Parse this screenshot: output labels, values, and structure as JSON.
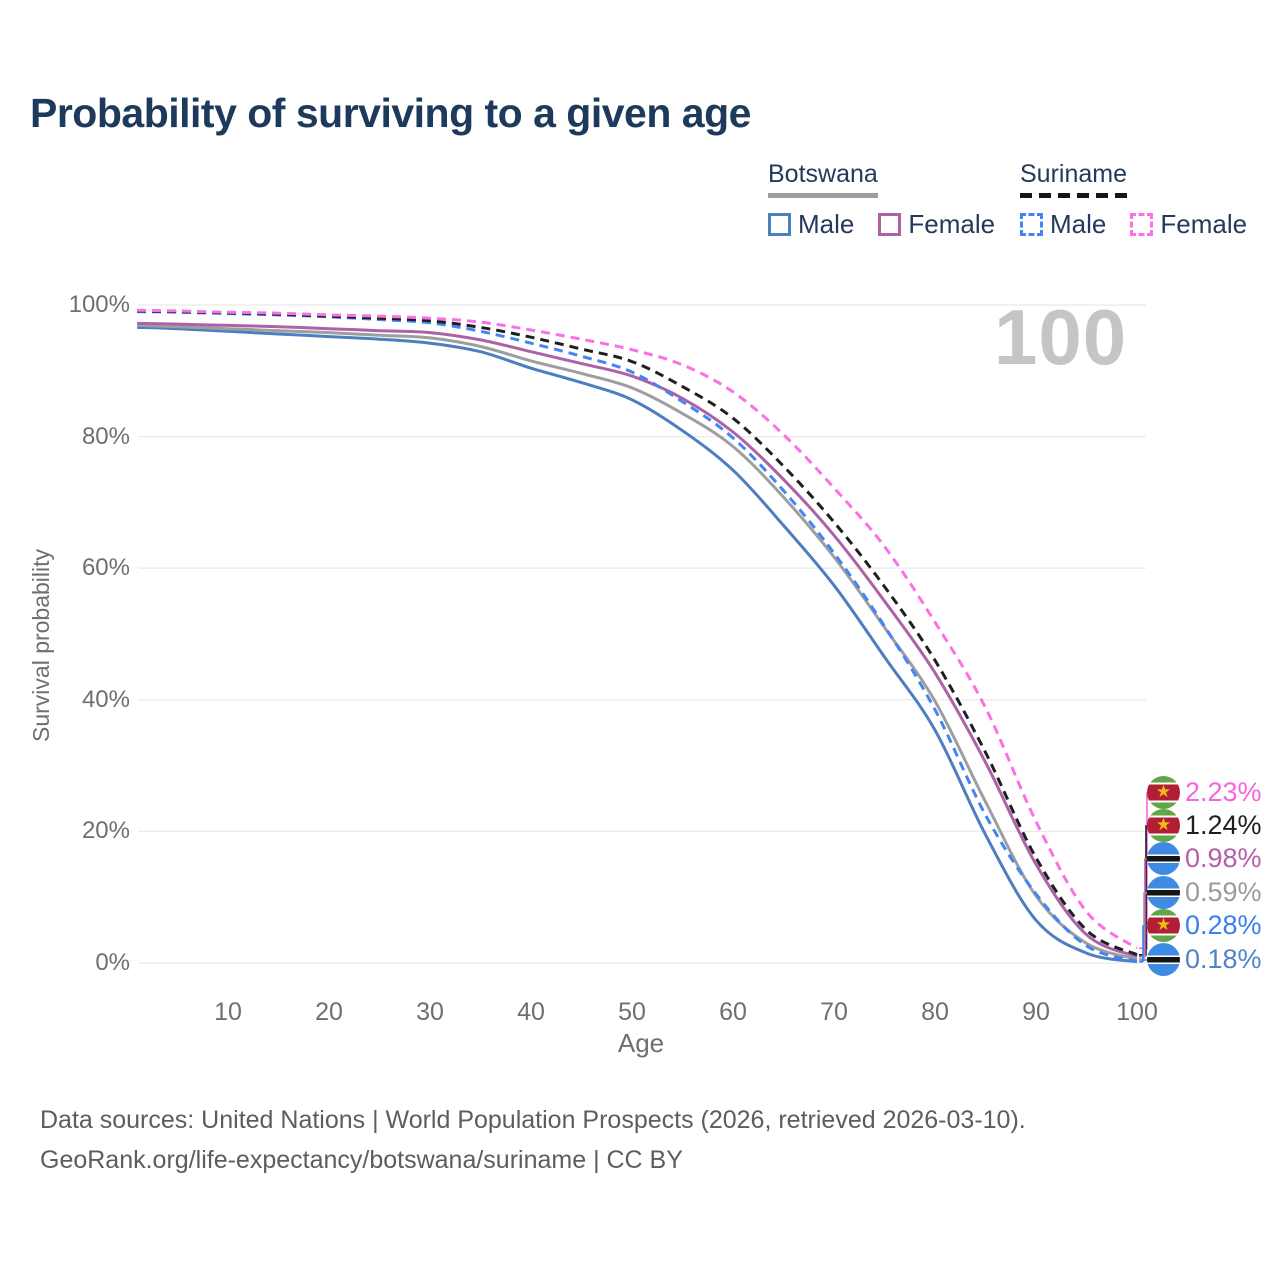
{
  "title": "Probability of surviving to a given age",
  "watermark_age": "100",
  "legend": {
    "groups": [
      {
        "name": "Botswana",
        "line_style": "solid",
        "line_color": "#9e9e9e",
        "items": [
          {
            "label": "Male",
            "color": "#4d7ec0"
          },
          {
            "label": "Female",
            "color": "#ad62a7"
          }
        ]
      },
      {
        "name": "Suriname",
        "line_style": "dashed",
        "line_color": "#161616",
        "items": [
          {
            "label": "Male",
            "color": "#4285f4"
          },
          {
            "label": "Female",
            "color": "#fb71e4"
          }
        ]
      }
    ]
  },
  "axes": {
    "y_title": "Survival probability",
    "x_title": "Age",
    "y_ticks": [
      {
        "label": "100%",
        "pct": 100
      },
      {
        "label": "80%",
        "pct": 80
      },
      {
        "label": "60%",
        "pct": 60
      },
      {
        "label": "40%",
        "pct": 40
      },
      {
        "label": "20%",
        "pct": 20
      },
      {
        "label": "0%",
        "pct": 0
      }
    ],
    "x_ticks": [
      {
        "label": "10",
        "age": 10
      },
      {
        "label": "20",
        "age": 20
      },
      {
        "label": "30",
        "age": 30
      },
      {
        "label": "40",
        "age": 40
      },
      {
        "label": "50",
        "age": 50
      },
      {
        "label": "60",
        "age": 60
      },
      {
        "label": "70",
        "age": 70
      },
      {
        "label": "80",
        "age": 80
      },
      {
        "label": "90",
        "age": 90
      },
      {
        "label": "100",
        "age": 100
      }
    ]
  },
  "chart_data": {
    "type": "line",
    "title": "Probability of surviving to a given age",
    "xlabel": "Age",
    "ylabel": "Survival probability",
    "x_range": [
      1,
      100
    ],
    "y_range_pct": [
      0,
      100
    ],
    "grid": "horizontal",
    "legend_position": "top-right",
    "series": [
      {
        "name": "Botswana Male",
        "country": "Botswana",
        "sex": "Male",
        "color": "#4d7ec0",
        "dashed": false,
        "points": [
          [
            1,
            96.6
          ],
          [
            5,
            96.4
          ],
          [
            10,
            96.0
          ],
          [
            15,
            95.6
          ],
          [
            20,
            95.2
          ],
          [
            25,
            94.8
          ],
          [
            30,
            94.2
          ],
          [
            35,
            92.9
          ],
          [
            40,
            90.4
          ],
          [
            45,
            88.2
          ],
          [
            50,
            85.6
          ],
          [
            55,
            80.9
          ],
          [
            60,
            74.9
          ],
          [
            65,
            66.5
          ],
          [
            70,
            57.4
          ],
          [
            75,
            46.5
          ],
          [
            80,
            35.4
          ],
          [
            85,
            19.5
          ],
          [
            90,
            6.5
          ],
          [
            95,
            1.5
          ],
          [
            100,
            0.18
          ]
        ]
      },
      {
        "name": "Botswana Both sexes",
        "country": "Botswana",
        "sex": "Both",
        "color": "#9e9e9e",
        "dashed": false,
        "points": [
          [
            1,
            96.9
          ],
          [
            5,
            96.7
          ],
          [
            10,
            96.4
          ],
          [
            15,
            96.1
          ],
          [
            20,
            95.8
          ],
          [
            25,
            95.4
          ],
          [
            30,
            95.0
          ],
          [
            35,
            93.7
          ],
          [
            40,
            91.5
          ],
          [
            45,
            89.6
          ],
          [
            50,
            87.4
          ],
          [
            55,
            83.5
          ],
          [
            60,
            78.5
          ],
          [
            65,
            70.8
          ],
          [
            70,
            61.7
          ],
          [
            75,
            51.0
          ],
          [
            80,
            39.8
          ],
          [
            85,
            24.5
          ],
          [
            90,
            10.2
          ],
          [
            95,
            3.0
          ],
          [
            100,
            0.59
          ]
        ]
      },
      {
        "name": "Botswana Female",
        "country": "Botswana",
        "sex": "Female",
        "color": "#ad62a7",
        "dashed": false,
        "points": [
          [
            1,
            97.2
          ],
          [
            5,
            97.1
          ],
          [
            10,
            96.9
          ],
          [
            15,
            96.7
          ],
          [
            20,
            96.4
          ],
          [
            25,
            96.1
          ],
          [
            30,
            95.8
          ],
          [
            35,
            94.7
          ],
          [
            40,
            92.9
          ],
          [
            45,
            91.1
          ],
          [
            50,
            89.2
          ],
          [
            55,
            85.8
          ],
          [
            60,
            80.7
          ],
          [
            65,
            73.5
          ],
          [
            70,
            65.0
          ],
          [
            75,
            55.0
          ],
          [
            80,
            44.1
          ],
          [
            85,
            30.5
          ],
          [
            90,
            15.0
          ],
          [
            95,
            4.3
          ],
          [
            100,
            0.98
          ]
        ]
      },
      {
        "name": "Suriname Male",
        "country": "Suriname",
        "sex": "Male",
        "color": "#4285f4",
        "dashed": true,
        "points": [
          [
            1,
            99.0
          ],
          [
            5,
            98.9
          ],
          [
            10,
            98.7
          ],
          [
            15,
            98.5
          ],
          [
            20,
            98.2
          ],
          [
            25,
            97.8
          ],
          [
            30,
            97.3
          ],
          [
            35,
            96.0
          ],
          [
            40,
            94.2
          ],
          [
            45,
            92.2
          ],
          [
            50,
            89.8
          ],
          [
            55,
            85.3
          ],
          [
            60,
            79.8
          ],
          [
            65,
            71.8
          ],
          [
            70,
            62.3
          ],
          [
            75,
            51.2
          ],
          [
            80,
            38.5
          ],
          [
            85,
            22.5
          ],
          [
            90,
            10.5
          ],
          [
            95,
            2.6
          ],
          [
            100,
            0.28
          ]
        ]
      },
      {
        "name": "Suriname Both sexes",
        "country": "Suriname",
        "sex": "Both",
        "color": "#1f1f1f",
        "dashed": true,
        "points": [
          [
            1,
            99.1
          ],
          [
            5,
            99.0
          ],
          [
            10,
            98.8
          ],
          [
            15,
            98.6
          ],
          [
            20,
            98.3
          ],
          [
            25,
            98.0
          ],
          [
            30,
            97.6
          ],
          [
            35,
            96.6
          ],
          [
            40,
            95.1
          ],
          [
            45,
            93.3
          ],
          [
            50,
            91.4
          ],
          [
            55,
            87.6
          ],
          [
            60,
            82.8
          ],
          [
            65,
            75.5
          ],
          [
            70,
            67.0
          ],
          [
            75,
            57.2
          ],
          [
            80,
            46.0
          ],
          [
            85,
            32.0
          ],
          [
            90,
            16.0
          ],
          [
            95,
            5.0
          ],
          [
            100,
            1.24
          ]
        ]
      },
      {
        "name": "Suriname Female",
        "country": "Suriname",
        "sex": "Female",
        "color": "#fb71e4",
        "dashed": true,
        "points": [
          [
            1,
            99.2
          ],
          [
            5,
            99.1
          ],
          [
            10,
            98.9
          ],
          [
            15,
            98.75
          ],
          [
            20,
            98.5
          ],
          [
            25,
            98.3
          ],
          [
            30,
            98.0
          ],
          [
            35,
            97.4
          ],
          [
            40,
            96.2
          ],
          [
            45,
            94.8
          ],
          [
            50,
            93.2
          ],
          [
            55,
            90.9
          ],
          [
            60,
            86.8
          ],
          [
            65,
            80.3
          ],
          [
            70,
            72.2
          ],
          [
            75,
            63.3
          ],
          [
            80,
            51.8
          ],
          [
            85,
            38.8
          ],
          [
            90,
            21.5
          ],
          [
            95,
            7.8
          ],
          [
            100,
            2.23
          ]
        ]
      }
    ],
    "end_labels_at_age_100": [
      {
        "flag": "suriname",
        "series": "Suriname Female",
        "value": "2.23%",
        "pct": 2.23,
        "color": "#f964de"
      },
      {
        "flag": "suriname",
        "series": "Suriname Both sexes",
        "value": "1.24%",
        "pct": 1.24,
        "color": "#1f1f1f"
      },
      {
        "flag": "botswana",
        "series": "Botswana Female",
        "value": "0.98%",
        "pct": 0.98,
        "color": "#b261a8"
      },
      {
        "flag": "botswana",
        "series": "Botswana Both sexes",
        "value": "0.59%",
        "pct": 0.59,
        "color": "#9b9b9b"
      },
      {
        "flag": "suriname",
        "series": "Suriname Male",
        "value": "0.28%",
        "pct": 0.28,
        "color": "#3a7ff0"
      },
      {
        "flag": "botswana",
        "series": "Botswana Male",
        "value": "0.18%",
        "pct": 0.18,
        "color": "#5282c8"
      }
    ]
  },
  "footer": {
    "line1": "Data sources: United Nations | World Population Prospects (2026, retrieved 2026-03-10).",
    "line2": "GeoRank.org/life-expectancy/botswana/suriname | CC BY"
  }
}
